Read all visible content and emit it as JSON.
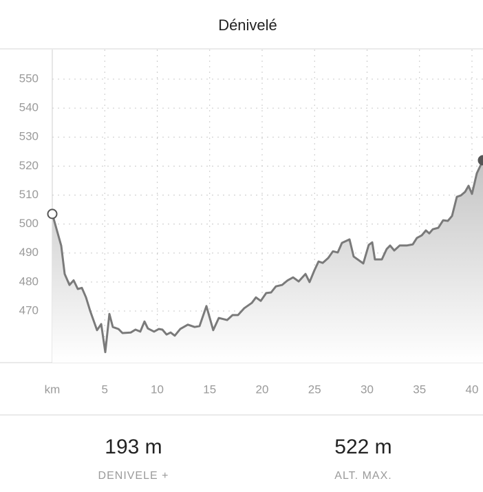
{
  "header": {
    "title": "Dénivelé"
  },
  "chart_data": {
    "type": "area",
    "x": [
      0,
      0.85,
      1.18,
      1.64,
      2.03,
      2.43,
      2.82,
      3.21,
      3.61,
      4.26,
      4.66,
      5.05,
      5.44,
      5.77,
      6.3,
      6.69,
      7.48,
      7.93,
      8.39,
      8.79,
      9.11,
      9.7,
      10.16,
      10.49,
      10.89,
      11.28,
      11.67,
      12.2,
      12.92,
      13.57,
      14.03,
      14.69,
      15.34,
      15.87,
      16.66,
      17.18,
      17.7,
      18.3,
      19.02,
      19.41,
      19.87,
      20.39,
      20.85,
      21.31,
      21.9,
      22.43,
      22.95,
      23.48,
      24.13,
      24.52,
      24.98,
      25.38,
      25.77,
      26.3,
      26.75,
      27.21,
      27.61,
      28.33,
      28.72,
      29.64,
      30.16,
      30.49,
      30.75,
      31.41,
      31.87,
      32.2,
      32.59,
      33.11,
      33.77,
      34.36,
      34.75,
      35.21,
      35.61,
      35.93,
      36.26,
      36.79,
      37.25,
      37.7,
      38.1,
      38.56,
      38.95,
      39.34,
      39.67,
      40,
      40.46,
      41.05
    ],
    "values": [
      503.5,
      492.5,
      482.8,
      479,
      480.6,
      477.6,
      478,
      474.7,
      470,
      463.4,
      465.5,
      455.8,
      469,
      464.5,
      463.8,
      462.4,
      462.6,
      463.6,
      462.9,
      466.4,
      464,
      462.9,
      463.8,
      463.6,
      461.9,
      462.6,
      461.5,
      463.8,
      465.3,
      464.5,
      464.8,
      471.7,
      463.4,
      467.6,
      466.9,
      468.6,
      468.6,
      471,
      472.8,
      474.7,
      473.5,
      476.2,
      476.4,
      478.5,
      479,
      480.6,
      481.6,
      480.2,
      482.8,
      480,
      484,
      487.1,
      486.6,
      488.3,
      490.6,
      490.2,
      493.5,
      494.7,
      488.8,
      486.4,
      492.8,
      493.7,
      487.8,
      487.8,
      491.4,
      492.6,
      490.9,
      492.6,
      492.6,
      493,
      495.2,
      496.1,
      497.8,
      496.8,
      498.2,
      498.7,
      501.3,
      501.1,
      502.8,
      509.4,
      509.9,
      511.1,
      513.2,
      510.4,
      517.5,
      522
    ],
    "color": "#7a7a7a",
    "xlim": [
      0,
      41.05
    ],
    "xticks": [
      {
        "value": 0,
        "label": "km"
      },
      5,
      10,
      15,
      20,
      25,
      30,
      35,
      40
    ],
    "ylim": [
      452.2,
      560.2
    ],
    "yticks": [
      470,
      480,
      490,
      500,
      510,
      520,
      530,
      540,
      550
    ],
    "yticks_unlabeled": [
      460
    ],
    "grid": true
  },
  "stats": [
    {
      "value": "193 m",
      "label": "DENIVELE +"
    },
    {
      "value": "522 m",
      "label": "ALT. MAX."
    }
  ]
}
